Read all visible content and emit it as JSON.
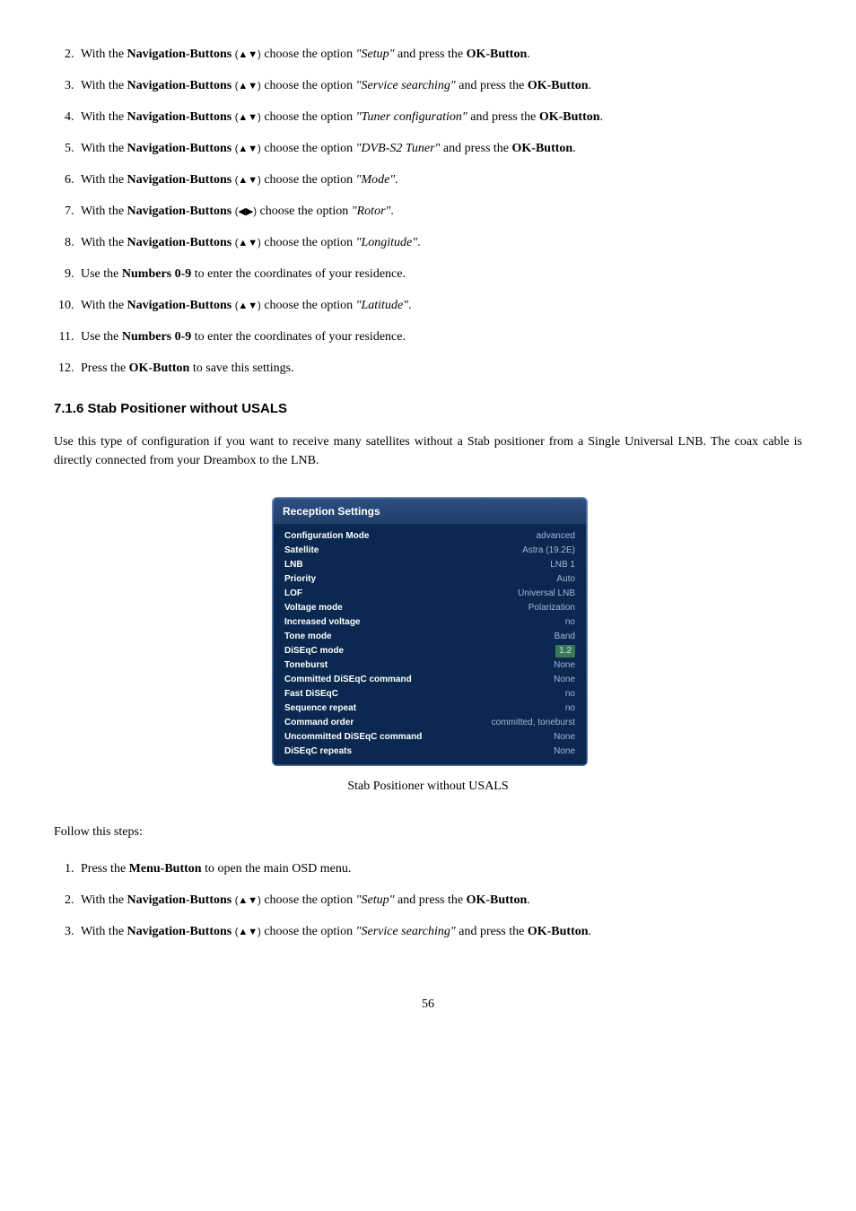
{
  "list1": [
    {
      "num": "2.",
      "pre": "With the ",
      "b1": "Navigation-Buttons",
      "arr": "(▲▼)",
      "mid": " choose the option ",
      "opt": "\"Setup\"",
      "post": " and press the ",
      "b2": "OK-Button",
      "tail": "."
    },
    {
      "num": "3.",
      "pre": "With the ",
      "b1": "Navigation-Buttons",
      "arr": "(▲▼)",
      "mid": " choose the option ",
      "opt": "\"Service searching\"",
      "post": " and press the ",
      "b2": "OK-Button",
      "tail": "."
    },
    {
      "num": "4.",
      "pre": "With the ",
      "b1": "Navigation-Buttons",
      "arr": "(▲▼)",
      "mid": " choose the option ",
      "opt": "\"Tuner configuration\"",
      "post": " and press the ",
      "b2": "OK-Button",
      "tail": "."
    },
    {
      "num": "5.",
      "pre": "With the ",
      "b1": "Navigation-Buttons",
      "arr": "(▲▼)",
      "mid": " choose the option ",
      "opt": "\"DVB-S2 Tuner\"",
      "post": " and press the ",
      "b2": "OK-Button",
      "tail": "."
    },
    {
      "num": "6.",
      "pre": "With the ",
      "b1": "Navigation-Buttons",
      "arr": "(▲▼)",
      "mid": " choose the option ",
      "opt": "\"Mode\"",
      "post": "",
      "b2": "",
      "tail": "."
    },
    {
      "num": "7.",
      "pre": "With the ",
      "b1": "Navigation-Buttons",
      "arr": "(◀▶)",
      "mid": " choose the option ",
      "opt": "\"Rotor\"",
      "post": "",
      "b2": "",
      "tail": "."
    },
    {
      "num": "8.",
      "pre": "With the ",
      "b1": "Navigation-Buttons",
      "arr": "(▲▼)",
      "mid": " choose the option ",
      "opt": "\"Longitude\"",
      "post": "",
      "b2": "",
      "tail": "."
    },
    {
      "num": "9.",
      "pre": "Use the ",
      "b1": "Numbers 0-9",
      "arr": "",
      "mid": " to enter the coordinates of your residence.",
      "opt": "",
      "post": "",
      "b2": "",
      "tail": ""
    },
    {
      "num": "10.",
      "pre": "With the ",
      "b1": "Navigation-Buttons",
      "arr": "(▲▼)",
      "mid": " choose the option ",
      "opt": "\"Latitude\"",
      "post": "",
      "b2": "",
      "tail": "."
    },
    {
      "num": "11.",
      "pre": "Use the ",
      "b1": "Numbers 0-9",
      "arr": "",
      "mid": " to enter the coordinates of your residence.",
      "opt": "",
      "post": "",
      "b2": "",
      "tail": ""
    },
    {
      "num": "12.",
      "pre": "Press the ",
      "b1": "OK-Button",
      "arr": "",
      "mid": " to save this settings.",
      "opt": "",
      "post": "",
      "b2": "",
      "tail": ""
    }
  ],
  "subsection": "7.1.6 Stab Positioner without USALS",
  "intro": "Use this type of configuration if you want to receive many satellites without a Stab positioner from a Single Universal LNB. The coax cable is directly connected from your Dreambox to the LNB.",
  "panel": {
    "title": "Reception Settings",
    "rows": [
      {
        "label": "Configuration Mode",
        "value": "advanced",
        "hl": false
      },
      {
        "label": "Satellite",
        "value": "Astra (19.2E)",
        "hl": false
      },
      {
        "label": "LNB",
        "value": "LNB 1",
        "hl": false
      },
      {
        "label": "Priority",
        "value": "Auto",
        "hl": false
      },
      {
        "label": "LOF",
        "value": "Universal LNB",
        "hl": false
      },
      {
        "label": "Voltage mode",
        "value": "Polarization",
        "hl": false
      },
      {
        "label": "Increased voltage",
        "value": "no",
        "hl": false
      },
      {
        "label": "Tone mode",
        "value": "Band",
        "hl": false
      },
      {
        "label": "DiSEqC mode",
        "value": "1.2",
        "hl": true
      },
      {
        "label": "Toneburst",
        "value": "None",
        "hl": false
      },
      {
        "label": "Committed DiSEqC command",
        "value": "None",
        "hl": false
      },
      {
        "label": "Fast DiSEqC",
        "value": "no",
        "hl": false
      },
      {
        "label": "Sequence repeat",
        "value": "no",
        "hl": false
      },
      {
        "label": "Command order",
        "value": "committed, toneburst",
        "hl": false
      },
      {
        "label": "Uncommitted DiSEqC command",
        "value": "None",
        "hl": false
      },
      {
        "label": "DiSEqC repeats",
        "value": "None",
        "hl": false
      }
    ]
  },
  "caption": "Stab Positioner without USALS",
  "follow": "Follow this steps:",
  "list2": [
    {
      "num": "1.",
      "pre": "Press the ",
      "b1": "Menu-Button",
      "arr": "",
      "mid": " to open the main OSD menu.",
      "opt": "",
      "post": "",
      "b2": "",
      "tail": ""
    },
    {
      "num": "2.",
      "pre": "With the ",
      "b1": "Navigation-Buttons",
      "arr": "(▲▼)",
      "mid": " choose the option ",
      "opt": "\"Setup\"",
      "post": " and press the ",
      "b2": "OK-Button",
      "tail": "."
    },
    {
      "num": "3.",
      "pre": "With the ",
      "b1": "Navigation-Buttons",
      "arr": "(▲▼)",
      "mid": " choose the option ",
      "opt": "\"Service searching\"",
      "post": " and press the ",
      "b2": "OK-Button",
      "tail": "."
    }
  ],
  "pagenum": "56"
}
